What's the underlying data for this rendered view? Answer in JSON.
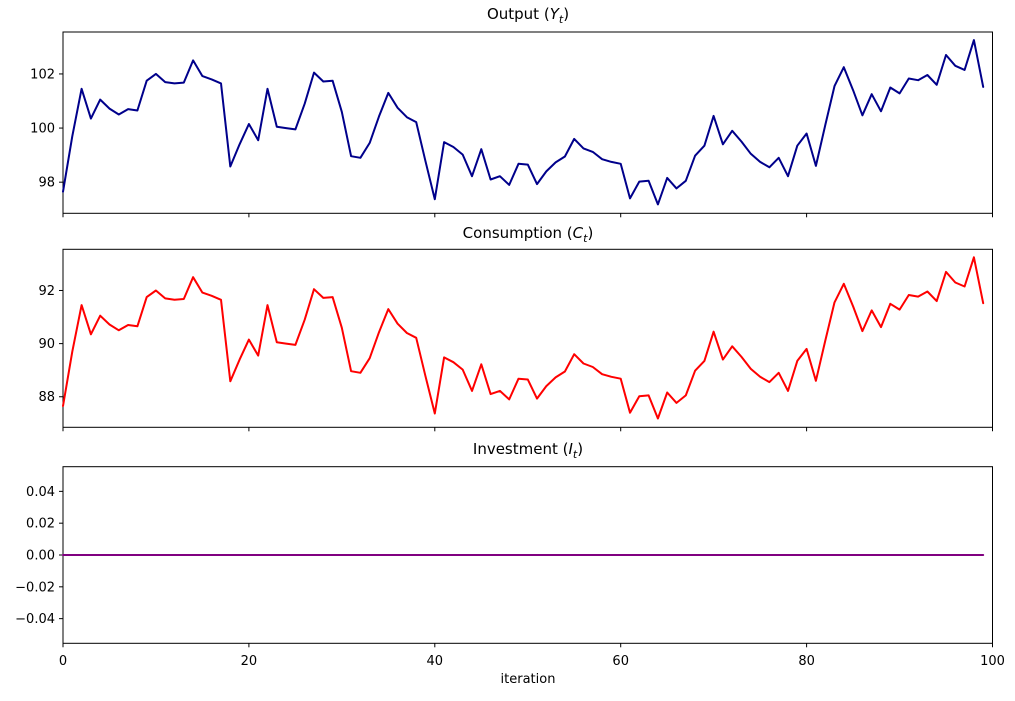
{
  "figure": {
    "xlabel": "iteration",
    "background_color": "#ffffff",
    "spine_color": "#000000",
    "x_axis": {
      "lim": [
        0,
        100
      ],
      "tick_values": [
        0,
        20,
        40,
        60,
        80,
        100
      ],
      "tick_labels": [
        "0",
        "20",
        "40",
        "60",
        "80",
        "100"
      ]
    }
  },
  "chart_data": [
    {
      "type": "line",
      "name": "output",
      "title": {
        "prefix": "Output (",
        "var": "Y",
        "sub": "t",
        "suffix": ")"
      },
      "color": "#00008B",
      "line_width": 2,
      "x_start": 0,
      "x_step": 1,
      "n_points": 100,
      "ylim": [
        96.85,
        103.55
      ],
      "ytick_values": [
        98,
        100,
        102
      ],
      "ytick_labels": [
        "98",
        "100",
        "102"
      ],
      "show_x_tick_labels": false,
      "values": [
        97.65,
        99.7,
        101.45,
        100.35,
        101.05,
        100.72,
        100.5,
        100.7,
        100.65,
        101.75,
        102.0,
        101.7,
        101.65,
        101.68,
        102.5,
        101.92,
        101.8,
        101.65,
        98.58,
        99.4,
        100.15,
        99.55,
        101.45,
        100.05,
        100.0,
        99.95,
        100.9,
        102.05,
        101.72,
        101.75,
        100.6,
        98.96,
        98.9,
        99.45,
        100.43,
        101.3,
        100.75,
        100.4,
        100.22,
        98.77,
        97.37,
        99.48,
        99.3,
        99.02,
        98.22,
        99.22,
        98.1,
        98.22,
        97.9,
        98.68,
        98.65,
        97.93,
        98.4,
        98.73,
        98.95,
        99.6,
        99.25,
        99.12,
        98.85,
        98.75,
        98.68,
        97.4,
        98.02,
        98.05,
        97.18,
        98.16,
        97.77,
        98.05,
        98.98,
        99.35,
        100.45,
        99.4,
        99.9,
        99.5,
        99.05,
        98.75,
        98.55,
        98.9,
        98.22,
        99.35,
        99.8,
        98.6,
        100.1,
        101.55,
        102.25,
        101.4,
        100.47,
        101.25,
        100.62,
        101.5,
        101.28,
        101.83,
        101.77,
        101.96,
        101.6,
        102.7,
        102.3,
        102.15,
        103.25,
        101.52
      ]
    },
    {
      "type": "line",
      "name": "consumption",
      "title": {
        "prefix": "Consumption (",
        "var": "C",
        "sub": "t",
        "suffix": ")"
      },
      "color": "#FF0000",
      "line_width": 2,
      "x_start": 0,
      "x_step": 1,
      "n_points": 100,
      "ylim": [
        86.85,
        93.55
      ],
      "ytick_values": [
        88,
        90,
        92
      ],
      "ytick_labels": [
        "88",
        "90",
        "92"
      ],
      "show_x_tick_labels": false,
      "values": [
        87.65,
        89.7,
        91.45,
        90.35,
        91.05,
        90.72,
        90.5,
        90.7,
        90.65,
        91.75,
        92.0,
        91.7,
        91.65,
        91.68,
        92.5,
        91.92,
        91.8,
        91.65,
        88.58,
        89.4,
        90.15,
        89.55,
        91.45,
        90.05,
        90.0,
        89.95,
        90.9,
        92.05,
        91.72,
        91.75,
        90.6,
        88.96,
        88.9,
        89.45,
        90.43,
        91.3,
        90.75,
        90.4,
        90.22,
        88.77,
        87.37,
        89.48,
        89.3,
        89.02,
        88.22,
        89.22,
        88.1,
        88.22,
        87.9,
        88.68,
        88.65,
        87.93,
        88.4,
        88.73,
        88.95,
        89.6,
        89.25,
        89.12,
        88.85,
        88.75,
        88.68,
        87.4,
        88.02,
        88.05,
        87.18,
        88.16,
        87.77,
        88.05,
        88.98,
        89.35,
        90.45,
        89.4,
        89.9,
        89.5,
        89.05,
        88.75,
        88.55,
        88.9,
        88.22,
        89.35,
        89.8,
        88.6,
        90.1,
        91.55,
        92.25,
        91.4,
        90.47,
        91.25,
        90.62,
        91.5,
        91.28,
        91.83,
        91.77,
        91.96,
        91.6,
        92.7,
        92.3,
        92.15,
        93.25,
        91.52
      ]
    },
    {
      "type": "line",
      "name": "investment",
      "title": {
        "prefix": "Investment (",
        "var": "I",
        "sub": "t",
        "suffix": ")"
      },
      "color": "#800080",
      "line_width": 2,
      "x_start": 0,
      "x_step": 1,
      "n_points": 100,
      "ylim": [
        -0.0555,
        0.0555
      ],
      "ytick_values": [
        0.04,
        0.02,
        0.0,
        -0.02,
        -0.04
      ],
      "ytick_labels": [
        "0.04",
        "0.02",
        "0.00",
        "−0.02",
        "−0.04"
      ],
      "show_x_tick_labels": true,
      "values": [
        0.0,
        0.0,
        0.0,
        0.0,
        0.0,
        0.0,
        0.0,
        0.0,
        0.0,
        0.0,
        0.0,
        0.0,
        0.0,
        0.0,
        0.0,
        0.0,
        0.0,
        0.0,
        0.0,
        0.0,
        0.0,
        0.0,
        0.0,
        0.0,
        0.0,
        0.0,
        0.0,
        0.0,
        0.0,
        0.0,
        0.0,
        0.0,
        0.0,
        0.0,
        0.0,
        0.0,
        0.0,
        0.0,
        0.0,
        0.0,
        0.0,
        0.0,
        0.0,
        0.0,
        0.0,
        0.0,
        0.0,
        0.0,
        0.0,
        0.0,
        0.0,
        0.0,
        0.0,
        0.0,
        0.0,
        0.0,
        0.0,
        0.0,
        0.0,
        0.0,
        0.0,
        0.0,
        0.0,
        0.0,
        0.0,
        0.0,
        0.0,
        0.0,
        0.0,
        0.0,
        0.0,
        0.0,
        0.0,
        0.0,
        0.0,
        0.0,
        0.0,
        0.0,
        0.0,
        0.0,
        0.0,
        0.0,
        0.0,
        0.0,
        0.0,
        0.0,
        0.0,
        0.0,
        0.0,
        0.0,
        0.0,
        0.0,
        0.0,
        0.0,
        0.0,
        0.0,
        0.0,
        0.0,
        0.0,
        0.0
      ]
    }
  ]
}
